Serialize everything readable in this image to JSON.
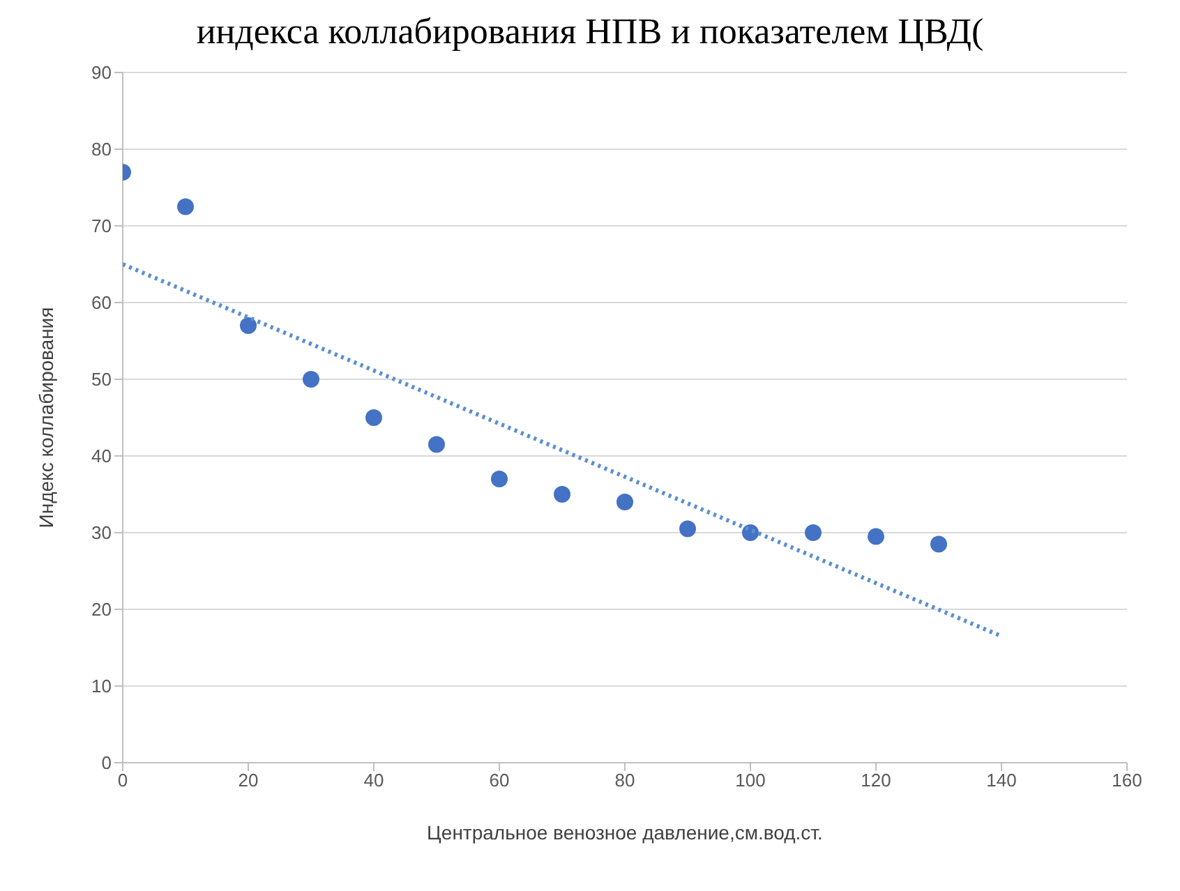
{
  "chart_data": {
    "type": "scatter",
    "title": "индекса коллабирования НПВ и показателем ЦВД(",
    "xlabel": "Центральное венозное давление,см.вод.ст.",
    "ylabel": "Индекс коллабирования",
    "xlim": [
      0,
      160
    ],
    "xticks": [
      0,
      20,
      40,
      60,
      80,
      100,
      120,
      140,
      160
    ],
    "ylim": [
      0,
      90
    ],
    "yticks": [
      0,
      10,
      20,
      30,
      40,
      50,
      60,
      70,
      80,
      90
    ],
    "grid": "y",
    "marker": "circle",
    "series": [
      {
        "color": "#4472c4",
        "x": [
          0,
          10,
          20,
          30,
          40,
          50,
          60,
          70,
          80,
          90,
          100,
          110,
          120,
          130
        ],
        "values": [
          77,
          72.5,
          57,
          50,
          45,
          41.5,
          37,
          35,
          34,
          30.5,
          30,
          30,
          29.5,
          28.5
        ]
      },
      {
        "type": "line",
        "color": "#5b8fd0",
        "line_style": "dotted",
        "marker": "none",
        "x": [
          0,
          140
        ],
        "values": [
          65,
          16.5
        ]
      }
    ]
  }
}
